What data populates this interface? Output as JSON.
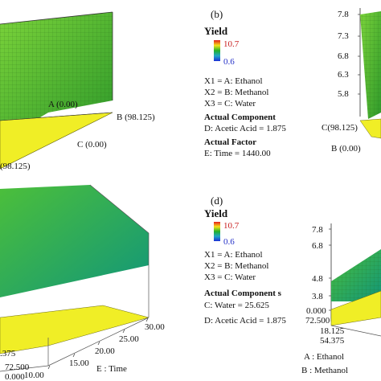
{
  "panels": {
    "b": {
      "tag": "(b)",
      "legend_title": "Yield",
      "legend_max": "10.7",
      "legend_min": "0.6",
      "lines": [
        "X1 = A: Ethanol",
        "X2 = B: Methanol",
        "X3 = C: Water"
      ],
      "section1": "Actual Component",
      "section1_line": "D: Acetic Acid = 1.875",
      "section2": "Actual Factor",
      "section2_line": "E: Time = 1440.00"
    },
    "d": {
      "tag": "(d)",
      "legend_title": "Yield",
      "legend_max": "10.7",
      "legend_min": "0.6",
      "lines": [
        "X1 = A: Ethanol",
        "X2 = B: Methanol",
        "X3 = C: Water"
      ],
      "section1": "Actual Component s",
      "line1": "C: Water = 25.625",
      "line2": "D: Acetic Acid = 1.875"
    }
  },
  "chart_data": [
    {
      "type": "surface",
      "panel": "top-left",
      "vertex_labels": [
        "A (0.00)",
        "B (98.125)",
        "C (0.00)",
        "(98.125)"
      ]
    },
    {
      "type": "surface",
      "panel": "top-right",
      "y_ticks": [
        "7.8",
        "7.3",
        "6.8",
        "6.3",
        "5.8"
      ],
      "vertex_labels": [
        "C(98.125)",
        "B (0.00)"
      ]
    },
    {
      "type": "surface",
      "panel": "bottom-left",
      "x_ticks": [
        "10.00",
        "15.00",
        "20.00",
        "25.00",
        "30.00"
      ],
      "xlabel": "E : Time",
      "y_ticks": [
        "72.500",
        "0.000"
      ],
      "y_partial": ".375"
    },
    {
      "type": "surface",
      "panel": "bottom-right",
      "z_ticks": [
        "7.8",
        "6.8",
        "4.8",
        "3.8",
        "0.000"
      ],
      "y_ticks": [
        "72.500",
        "18.125",
        "54.375"
      ],
      "axis_labels": [
        "A : Ethanol",
        "B : Methanol"
      ]
    }
  ]
}
